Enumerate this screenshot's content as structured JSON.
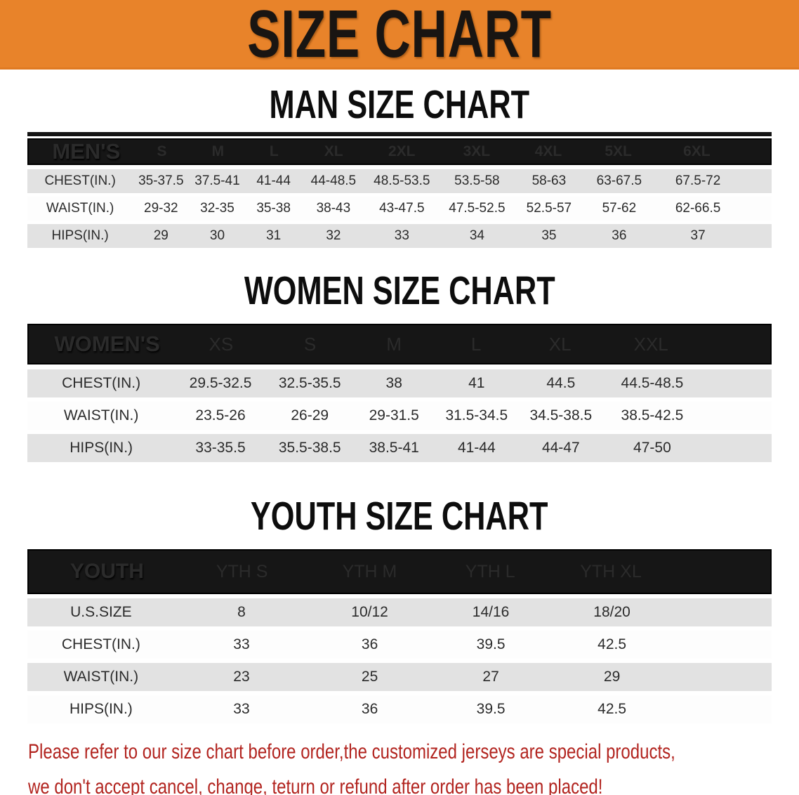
{
  "banner": {
    "title": "SIZE CHART",
    "bg_color": "#e8832a",
    "text_color": "#191512"
  },
  "sections": [
    {
      "title": "MAN SIZE CHART",
      "header_label": "MEN'S",
      "columns": [
        "S",
        "M",
        "L",
        "XL",
        "2XL",
        "3XL",
        "4XL",
        "5XL",
        "6XL"
      ],
      "rows": [
        {
          "label": "CHEST(IN.)",
          "values": [
            "35-37.5",
            "37.5-41",
            "41-44",
            "44-48.5",
            "48.5-53.5",
            "53.5-58",
            "58-63",
            "63-67.5",
            "67.5-72"
          ]
        },
        {
          "label": "WAIST(IN.)",
          "values": [
            "29-32",
            "32-35",
            "35-38",
            "38-43",
            "43-47.5",
            "47.5-52.5",
            "52.5-57",
            "57-62",
            "62-66.5"
          ]
        },
        {
          "label": "HIPS(IN.)",
          "values": [
            "29",
            "30",
            "31",
            "32",
            "33",
            "34",
            "35",
            "36",
            "37"
          ]
        }
      ]
    },
    {
      "title": "WOMEN SIZE CHART",
      "header_label": "WOMEN'S",
      "columns": [
        "XS",
        "S",
        "M",
        "L",
        "XL",
        "XXL"
      ],
      "rows": [
        {
          "label": "CHEST(IN.)",
          "values": [
            "29.5-32.5",
            "32.5-35.5",
            "38",
            "41",
            "44.5",
            "44.5-48.5"
          ]
        },
        {
          "label": "WAIST(IN.)",
          "values": [
            "23.5-26",
            "26-29",
            "29-31.5",
            "31.5-34.5",
            "34.5-38.5",
            "38.5-42.5"
          ]
        },
        {
          "label": "HIPS(IN.)",
          "values": [
            "33-35.5",
            "35.5-38.5",
            "38.5-41",
            "41-44",
            "44-47",
            "47-50"
          ]
        }
      ]
    },
    {
      "title": "YOUTH SIZE CHART",
      "header_label": "YOUTH",
      "columns": [
        "YTH S",
        "YTH M",
        "YTH L",
        "YTH XL"
      ],
      "rows": [
        {
          "label": "U.S.SIZE",
          "values": [
            "8",
            "10/12",
            "14/16",
            "18/20"
          ]
        },
        {
          "label": "CHEST(IN.)",
          "values": [
            "33",
            "36",
            "39.5",
            "42.5"
          ]
        },
        {
          "label": "WAIST(IN.)",
          "values": [
            "23",
            "25",
            "27",
            "29"
          ]
        },
        {
          "label": "HIPS(IN.)",
          "values": [
            "33",
            "36",
            "39.5",
            "42.5"
          ]
        }
      ]
    }
  ],
  "disclaimer": {
    "line1": "Please refer to our size chart before order,the customized jerseys are special products,",
    "line2": "we don't accept cancel, change, teturn or refund after order has been placed!",
    "text_color": "#b2241f"
  }
}
